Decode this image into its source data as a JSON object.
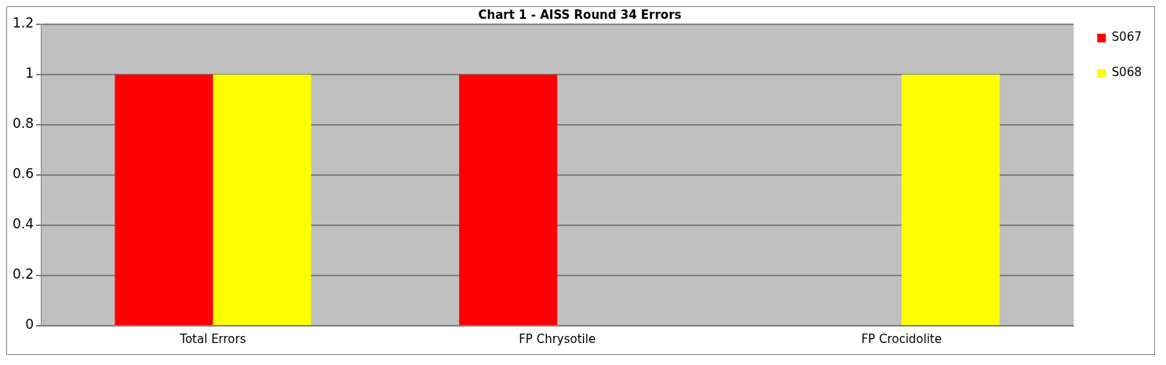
{
  "chart_data": {
    "type": "bar",
    "title": "Chart 1 - AISS Round 34 Errors",
    "categories": [
      "Total Errors",
      "FP Chrysotile",
      "FP Crocidolite"
    ],
    "series": [
      {
        "name": "S067",
        "color": "#ff0000",
        "values": [
          1,
          1,
          0
        ]
      },
      {
        "name": "S068",
        "color": "#ffff00",
        "values": [
          1,
          0,
          1
        ]
      }
    ],
    "ylim": [
      0,
      1.2
    ],
    "yticks": [
      0,
      0.2,
      0.4,
      0.6,
      0.8,
      1,
      1.2
    ],
    "grid": "y",
    "legend": "top right"
  }
}
